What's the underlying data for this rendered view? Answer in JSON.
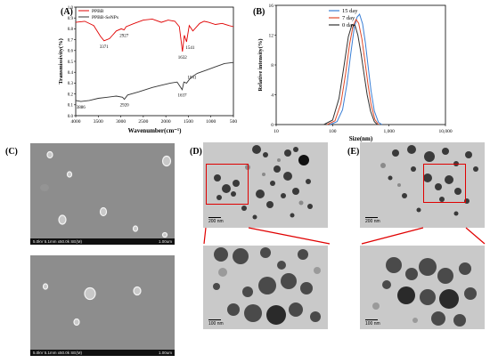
{
  "panels": {
    "a": {
      "label": "(A)",
      "legend": [
        "PPBB",
        "PPBB-SeNPs"
      ],
      "xlabel": "Wavenumber(cm⁻¹)",
      "ylabel": "Transmissivity(%)",
      "xticks": [
        "4000",
        "3500",
        "3000",
        "2500",
        "2000",
        "1500",
        "1000",
        "500"
      ],
      "yticks": [
        "1.0",
        "0.9",
        "0.8",
        "0.7",
        "0.6",
        "0.5",
        "0.4",
        "0.3",
        "0.2",
        "0.1",
        "0.0"
      ],
      "peaks_top": [
        "3371",
        "2927",
        "1632",
        "1541"
      ],
      "peaks_bottom": [
        "3886",
        "2920",
        "1637",
        "1541"
      ]
    },
    "b": {
      "label": "(B)",
      "legend": [
        "15 day",
        "7 day",
        "0 day"
      ],
      "xlabel": "Size(nm)",
      "ylabel": "Relative intensity(%)",
      "xticks": [
        "10",
        "100",
        "1,000",
        "10,000"
      ],
      "yticks": [
        "0",
        "4",
        "8",
        "12",
        "16"
      ]
    },
    "c": {
      "label": "(C)",
      "info_text": "5.0kV 5.1mm x50.0k SE(M)",
      "scale_text": "1.00um"
    },
    "d": {
      "label": "(D)",
      "scale_top": "200 nm",
      "scale_bottom": "100 nm"
    },
    "e": {
      "label": "(E)",
      "scale_top": "200 nm",
      "scale_bottom": "100 nm"
    }
  },
  "chart_data": [
    {
      "type": "line",
      "title": "",
      "xlabel": "Wavenumber(cm⁻¹)",
      "ylabel": "Transmissivity(%)",
      "xlim": [
        4000,
        500
      ],
      "ylim": [
        0.0,
        1.0
      ],
      "legend_position": "top-left",
      "series": [
        {
          "name": "PPBB",
          "color": "#e00000",
          "x": [
            4000,
            3800,
            3600,
            3450,
            3371,
            3250,
            3100,
            2990,
            2927,
            2880,
            2700,
            2500,
            2300,
            2100,
            1950,
            1800,
            1700,
            1632,
            1590,
            1541,
            1480,
            1400,
            1250,
            1150,
            1050,
            900,
            750,
            600,
            500
          ],
          "y": [
            0.86,
            0.87,
            0.83,
            0.73,
            0.69,
            0.71,
            0.78,
            0.8,
            0.79,
            0.82,
            0.85,
            0.88,
            0.89,
            0.86,
            0.88,
            0.87,
            0.82,
            0.59,
            0.74,
            0.68,
            0.83,
            0.78,
            0.85,
            0.87,
            0.86,
            0.84,
            0.85,
            0.83,
            0.82
          ]
        },
        {
          "name": "PPBB-SeNPs",
          "color": "#333333",
          "x": [
            4000,
            3886,
            3700,
            3500,
            3300,
            3100,
            2960,
            2920,
            2850,
            2600,
            2300,
            2100,
            1900,
            1750,
            1637,
            1600,
            1541,
            1450,
            1300,
            1100,
            900,
            700,
            500
          ],
          "y": [
            0.14,
            0.13,
            0.14,
            0.16,
            0.17,
            0.18,
            0.17,
            0.15,
            0.19,
            0.22,
            0.26,
            0.28,
            0.3,
            0.31,
            0.24,
            0.31,
            0.3,
            0.35,
            0.39,
            0.42,
            0.45,
            0.48,
            0.49
          ]
        }
      ]
    },
    {
      "type": "line",
      "title": "",
      "xlabel": "Size(nm)",
      "ylabel": "Relative intensity(%)",
      "x_scale": "log",
      "xlim": [
        10,
        10000
      ],
      "ylim": [
        0,
        16
      ],
      "legend_position": "top",
      "series": [
        {
          "name": "15 day",
          "color": "#3a7fd5",
          "x": [
            90,
            120,
            150,
            180,
            210,
            240,
            270,
            300,
            340,
            380,
            420,
            480,
            550,
            650,
            750
          ],
          "y": [
            0,
            0.4,
            2.0,
            5.5,
            9.5,
            12.8,
            14.4,
            14.8,
            13.5,
            11.0,
            8.2,
            4.5,
            1.8,
            0.3,
            0
          ]
        },
        {
          "name": "7 day",
          "color": "#e04a2a",
          "x": [
            80,
            110,
            140,
            170,
            200,
            230,
            260,
            290,
            330,
            370,
            420,
            480,
            560,
            650
          ],
          "y": [
            0,
            0.5,
            2.8,
            6.8,
            10.8,
            13.2,
            14.1,
            13.6,
            11.5,
            8.8,
            5.6,
            2.7,
            0.7,
            0
          ]
        },
        {
          "name": "0 day",
          "color": "#333333",
          "x": [
            70,
            100,
            130,
            160,
            190,
            220,
            250,
            280,
            320,
            360,
            410,
            470,
            550,
            620
          ],
          "y": [
            0,
            0.6,
            3.5,
            8.0,
            11.8,
            13.4,
            13.3,
            12.0,
            9.5,
            6.8,
            4.0,
            1.8,
            0.4,
            0
          ]
        }
      ]
    }
  ]
}
